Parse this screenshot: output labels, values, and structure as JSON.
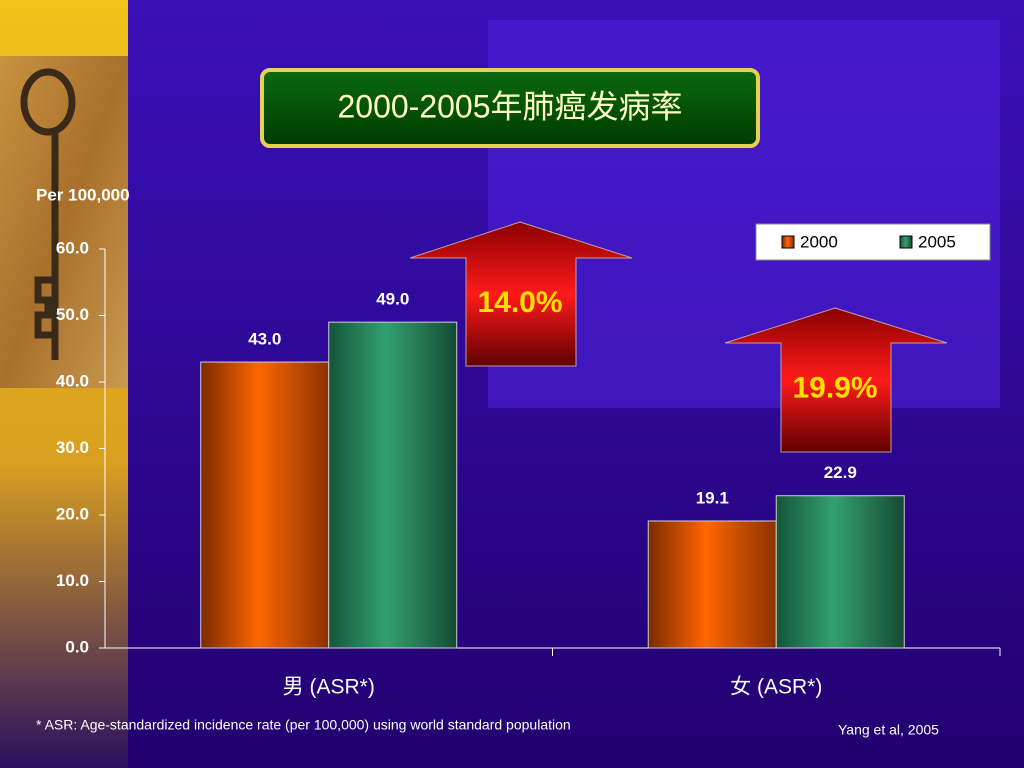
{
  "chart_data": {
    "type": "bar",
    "title": "2000-2005年肺癌发病率",
    "y_label": "Per 100,000",
    "categories": [
      "男 (ASR*)",
      "女 (ASR*)"
    ],
    "series": [
      {
        "name": "2000",
        "color": "#ff6600",
        "values": [
          43.0,
          19.1
        ],
        "value_labels": [
          "43.0",
          "19.1"
        ]
      },
      {
        "name": "2005",
        "color": "#2e9466",
        "values": [
          49.0,
          22.9
        ],
        "value_labels": [
          "49.0",
          "22.9"
        ]
      }
    ],
    "ylim": [
      0,
      60
    ],
    "yticks": [
      {
        "value": 0,
        "label": "0.0"
      },
      {
        "value": 10,
        "label": "10.0"
      },
      {
        "value": 20,
        "label": "20.0"
      },
      {
        "value": 30,
        "label": "30.0"
      },
      {
        "value": 40,
        "label": "40.0"
      },
      {
        "value": 50,
        "label": "50.0"
      },
      {
        "value": 60,
        "label": "60.0"
      }
    ],
    "legend": "top-right",
    "annotations": [
      "14.0%",
      "19.9%"
    ],
    "footnote": "*   ASR: Age-standardized incidence rate (per 100,000) using world standard population",
    "source": "Yang et al, 2005"
  }
}
